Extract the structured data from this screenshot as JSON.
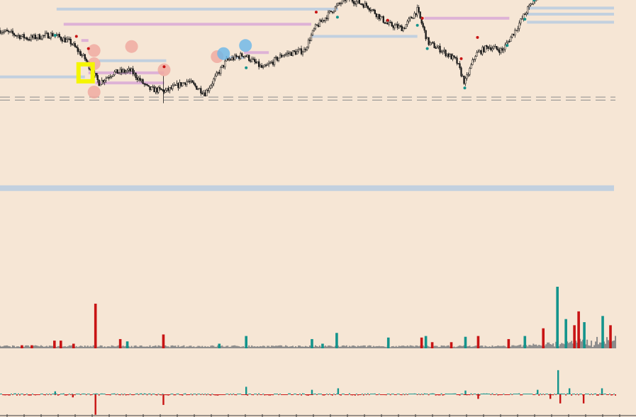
{
  "colors": {
    "background": "#f6e6d5",
    "candle": "#1a1a1a",
    "teal": "#14948c",
    "red": "#c81414",
    "gray_volume": "#8a8a8a",
    "pink_level": "#d9a8d6",
    "blue_level": "#b8cbe0",
    "salmon_marker": "#f0a79d",
    "blue_marker": "#6ab7e8",
    "highlight_yellow": "#f5f500"
  },
  "chart_data": [
    {
      "type": "candlestick",
      "panel": "price",
      "title": "",
      "xlabel": "",
      "ylabel": "",
      "grid": false,
      "legend": "none",
      "x_range": [
        0,
        870
      ],
      "y_range": [
        0,
        210
      ],
      "trend_anchors": [
        {
          "bar": 0,
          "price": 180
        },
        {
          "bar": 40,
          "price": 172
        },
        {
          "bar": 75,
          "price": 176
        },
        {
          "bar": 100,
          "price": 168
        },
        {
          "bar": 120,
          "price": 152
        },
        {
          "bar": 140,
          "price": 128
        },
        {
          "bar": 160,
          "price": 138
        },
        {
          "bar": 185,
          "price": 140
        },
        {
          "bar": 210,
          "price": 122
        },
        {
          "bar": 235,
          "price": 120
        },
        {
          "bar": 265,
          "price": 130
        },
        {
          "bar": 290,
          "price": 118
        },
        {
          "bar": 320,
          "price": 150
        },
        {
          "bar": 345,
          "price": 156
        },
        {
          "bar": 372,
          "price": 142
        },
        {
          "bar": 400,
          "price": 156
        },
        {
          "bar": 430,
          "price": 160
        },
        {
          "bar": 445,
          "price": 182
        },
        {
          "bar": 470,
          "price": 200
        },
        {
          "bar": 490,
          "price": 212
        },
        {
          "bar": 520,
          "price": 204
        },
        {
          "bar": 548,
          "price": 186
        },
        {
          "bar": 570,
          "price": 182
        },
        {
          "bar": 590,
          "price": 200
        },
        {
          "bar": 605,
          "price": 168
        },
        {
          "bar": 625,
          "price": 160
        },
        {
          "bar": 645,
          "price": 150
        },
        {
          "bar": 657,
          "price": 128
        },
        {
          "bar": 672,
          "price": 156
        },
        {
          "bar": 690,
          "price": 164
        },
        {
          "bar": 710,
          "price": 160
        },
        {
          "bar": 730,
          "price": 182
        },
        {
          "bar": 745,
          "price": 200
        },
        {
          "bar": 760,
          "price": 215
        }
      ],
      "horizontal_levels": [
        {
          "color": "pink",
          "price": 212,
          "start": 0,
          "end": 478
        },
        {
          "color": "blue",
          "price": 201,
          "start": 80,
          "end": 478
        },
        {
          "color": "pink",
          "price": 186,
          "start": 90,
          "end": 440
        },
        {
          "color": "blue",
          "price": 174,
          "start": 440,
          "end": 590
        },
        {
          "color": "pink",
          "price": 170,
          "start": 115,
          "end": 125
        },
        {
          "color": "blue",
          "price": 150,
          "start": 140,
          "end": 235
        },
        {
          "color": "pink",
          "price": 138,
          "start": 125,
          "end": 232
        },
        {
          "color": "pink",
          "price": 128,
          "start": 135,
          "end": 232
        },
        {
          "color": "blue",
          "price": 134,
          "start": 0,
          "end": 120
        },
        {
          "color": "pink",
          "price": 192,
          "start": 600,
          "end": 720
        },
        {
          "color": "blue",
          "price": 202,
          "start": 745,
          "end": 868
        },
        {
          "color": "blue",
          "price": 196,
          "start": 745,
          "end": 868
        },
        {
          "color": "blue",
          "price": 188,
          "start": 745,
          "end": 868
        },
        {
          "color": "pink",
          "price": 158,
          "start": 345,
          "end": 380
        },
        {
          "color": "blue",
          "price": 153,
          "start": 322,
          "end": 345
        },
        {
          "color": "blue",
          "price": 24,
          "start": 0,
          "end": 868,
          "thick": true
        }
      ],
      "dashed_levels": [
        114,
        111
      ],
      "markers": [
        {
          "shape": "circle",
          "color": "salmon",
          "bar": 133,
          "price": 160
        },
        {
          "shape": "circle",
          "color": "salmon",
          "bar": 133,
          "price": 147
        },
        {
          "shape": "circle",
          "color": "salmon",
          "bar": 133,
          "price": 119
        },
        {
          "shape": "circle",
          "color": "salmon",
          "bar": 186,
          "price": 164
        },
        {
          "shape": "circle",
          "color": "salmon",
          "bar": 232,
          "price": 141
        },
        {
          "shape": "circle",
          "color": "salmon",
          "bar": 307,
          "price": 154
        },
        {
          "shape": "circle",
          "color": "blue",
          "bar": 316,
          "price": 157
        },
        {
          "shape": "circle",
          "color": "blue",
          "bar": 347,
          "price": 165
        },
        {
          "shape": "square",
          "color": "yellow",
          "bar": 121,
          "price": 138
        }
      ],
      "dots": [
        {
          "color": "teal",
          "bar": 78,
          "price": 175
        },
        {
          "color": "red",
          "bar": 108,
          "price": 174
        },
        {
          "color": "red",
          "bar": 125,
          "price": 162
        },
        {
          "color": "red",
          "bar": 232,
          "price": 144
        },
        {
          "color": "teal",
          "bar": 348,
          "price": 143
        },
        {
          "color": "red",
          "bar": 447,
          "price": 198
        },
        {
          "color": "teal",
          "bar": 477,
          "price": 193
        },
        {
          "color": "red",
          "bar": 548,
          "price": 190
        },
        {
          "color": "teal",
          "bar": 590,
          "price": 185
        },
        {
          "color": "red",
          "bar": 597,
          "price": 192
        },
        {
          "color": "teal",
          "bar": 604,
          "price": 162
        },
        {
          "color": "red",
          "bar": 652,
          "price": 152
        },
        {
          "color": "teal",
          "bar": 657,
          "price": 123
        },
        {
          "color": "red",
          "bar": 675,
          "price": 173
        },
        {
          "color": "teal",
          "bar": 717,
          "price": 165
        },
        {
          "color": "teal",
          "bar": 742,
          "price": 191
        },
        {
          "color": "teal",
          "bar": 755,
          "price": 210
        }
      ]
    },
    {
      "type": "bar",
      "panel": "volume",
      "title": "",
      "xlabel": "",
      "ylabel": "",
      "grid": false,
      "legend": "none",
      "y_range": [
        0,
        80
      ],
      "baseline": "gray",
      "highlighted_bars": [
        {
          "bar": 31,
          "value": 4,
          "color": "red"
        },
        {
          "bar": 45,
          "value": 4,
          "color": "red"
        },
        {
          "bar": 77,
          "value": 10,
          "color": "red"
        },
        {
          "bar": 86,
          "value": 10,
          "color": "red"
        },
        {
          "bar": 104,
          "value": 6,
          "color": "red"
        },
        {
          "bar": 135,
          "value": 58,
          "color": "red"
        },
        {
          "bar": 170,
          "value": 12,
          "color": "red"
        },
        {
          "bar": 180,
          "value": 9,
          "color": "teal"
        },
        {
          "bar": 231,
          "value": 18,
          "color": "red"
        },
        {
          "bar": 310,
          "value": 6,
          "color": "teal"
        },
        {
          "bar": 348,
          "value": 16,
          "color": "teal"
        },
        {
          "bar": 441,
          "value": 12,
          "color": "teal"
        },
        {
          "bar": 456,
          "value": 6,
          "color": "teal"
        },
        {
          "bar": 476,
          "value": 20,
          "color": "teal"
        },
        {
          "bar": 549,
          "value": 14,
          "color": "teal"
        },
        {
          "bar": 596,
          "value": 14,
          "color": "red"
        },
        {
          "bar": 602,
          "value": 16,
          "color": "teal"
        },
        {
          "bar": 611,
          "value": 8,
          "color": "red"
        },
        {
          "bar": 638,
          "value": 8,
          "color": "red"
        },
        {
          "bar": 658,
          "value": 15,
          "color": "teal"
        },
        {
          "bar": 676,
          "value": 16,
          "color": "red"
        },
        {
          "bar": 719,
          "value": 12,
          "color": "red"
        },
        {
          "bar": 742,
          "value": 16,
          "color": "teal"
        },
        {
          "bar": 768,
          "value": 26,
          "color": "red"
        },
        {
          "bar": 788,
          "value": 80,
          "color": "teal"
        },
        {
          "bar": 800,
          "value": 38,
          "color": "teal"
        },
        {
          "bar": 812,
          "value": 30,
          "color": "red"
        },
        {
          "bar": 818,
          "value": 48,
          "color": "red"
        },
        {
          "bar": 826,
          "value": 34,
          "color": "teal"
        },
        {
          "bar": 852,
          "value": 42,
          "color": "teal"
        },
        {
          "bar": 863,
          "value": 30,
          "color": "red"
        }
      ]
    },
    {
      "type": "bar",
      "panel": "delta",
      "title": "",
      "xlabel": "",
      "ylabel": "",
      "grid": false,
      "legend": "none",
      "y_range": [
        -30,
        30
      ],
      "highlighted_bars": [
        {
          "bar": 78,
          "value": 4,
          "color": "teal"
        },
        {
          "bar": 103,
          "value": -4,
          "color": "red"
        },
        {
          "bar": 135,
          "value": -27,
          "color": "red"
        },
        {
          "bar": 231,
          "value": -14,
          "color": "red"
        },
        {
          "bar": 348,
          "value": 10,
          "color": "teal"
        },
        {
          "bar": 441,
          "value": 6,
          "color": "teal"
        },
        {
          "bar": 478,
          "value": 8,
          "color": "teal"
        },
        {
          "bar": 658,
          "value": 5,
          "color": "teal"
        },
        {
          "bar": 676,
          "value": -6,
          "color": "red"
        },
        {
          "bar": 760,
          "value": 6,
          "color": "teal"
        },
        {
          "bar": 778,
          "value": -6,
          "color": "red"
        },
        {
          "bar": 789,
          "value": 32,
          "color": "teal"
        },
        {
          "bar": 792,
          "value": -12,
          "color": "red"
        },
        {
          "bar": 805,
          "value": 8,
          "color": "teal"
        },
        {
          "bar": 825,
          "value": -12,
          "color": "red"
        },
        {
          "bar": 851,
          "value": 8,
          "color": "teal"
        }
      ]
    }
  ]
}
